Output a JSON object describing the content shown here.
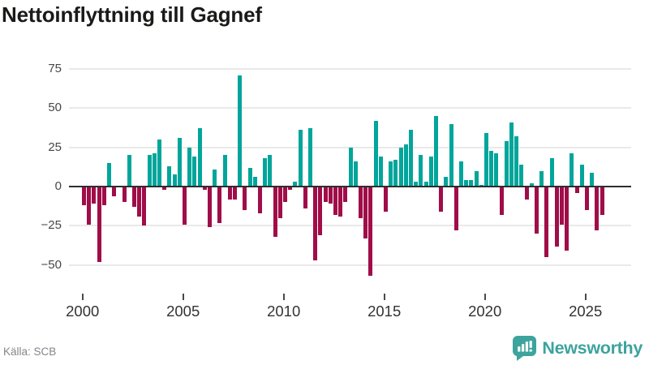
{
  "title": "Nettoinflyttning till Gagnef",
  "source_label": "Källa: SCB",
  "brand": {
    "name": "Newsworthy",
    "color": "#3da39d"
  },
  "colors": {
    "positive_bar": "#00a59b",
    "negative_bar": "#a00d49",
    "zero_line": "#2e2e2e",
    "gridline": "#e9e9e9",
    "axis_text": "#474747",
    "x_axis_text": "#333333",
    "source_text": "#84858c",
    "title_text": "#1a1a18"
  },
  "y_axis": {
    "ticks": [
      75,
      50,
      25,
      0,
      -25,
      -50
    ],
    "labels": [
      "75",
      "50",
      "25",
      "0",
      "−25",
      "−50"
    ]
  },
  "x_axis": {
    "ticks": [
      2000,
      2005,
      2010,
      2015,
      2020,
      2025
    ],
    "labels": [
      "2000",
      "2005",
      "2010",
      "2015",
      "2020",
      "2025"
    ]
  },
  "chart_data": {
    "type": "bar",
    "title": "Nettoinflyttning till Gagnef",
    "ylabel": "",
    "xlabel": "",
    "frequency": "quarterly",
    "x_start_year": 2000,
    "x_end_year": 2025,
    "ylim": [
      -67,
      80
    ],
    "grid": true,
    "legend": false,
    "positive_color": "#00a59b",
    "negative_color": "#a00d49",
    "values": [
      -12,
      -24,
      -11,
      -48,
      -12,
      15,
      -6,
      0,
      -10,
      20,
      -13,
      -19,
      -25,
      20,
      21,
      30,
      -2,
      13,
      8,
      31,
      -24,
      25,
      19,
      37,
      -2,
      -26,
      11,
      -23,
      20,
      -8,
      -8,
      71,
      -15,
      12,
      6,
      -17,
      18,
      20,
      -32,
      -20,
      -10,
      -2,
      3,
      36,
      -14,
      37,
      -47,
      -31,
      -10,
      -11,
      -18,
      -19,
      -10,
      25,
      16,
      -20,
      -33,
      -57,
      42,
      19,
      -16,
      16,
      17,
      25,
      27,
      36,
      3,
      20,
      3,
      19,
      45,
      -16,
      6,
      40,
      -28,
      16,
      4,
      4,
      10,
      1,
      34,
      23,
      21,
      -18,
      29,
      41,
      32,
      14,
      -8,
      2,
      -30,
      10,
      -45,
      18,
      -38,
      -24,
      -41,
      21,
      -4,
      14,
      -15,
      9,
      -28,
      -18
    ]
  }
}
